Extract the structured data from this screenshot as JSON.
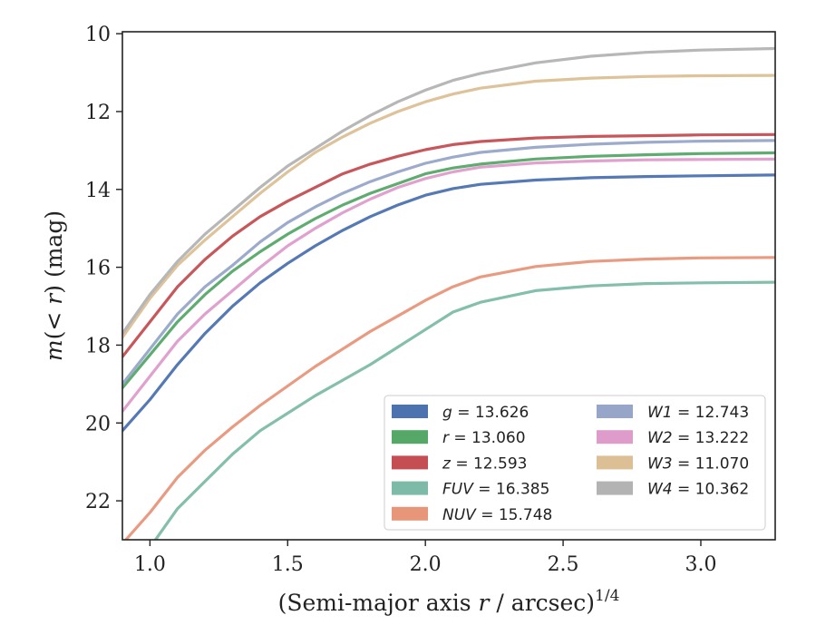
{
  "chart_data": {
    "type": "line",
    "xlabel": "(Semi-major axis r / arcsec)^1/4",
    "xlabel_main": "(Semi-major axis ",
    "xlabel_var": "r",
    "xlabel_rest": " / arcsec)",
    "xlabel_sup": "1/4",
    "ylabel": "m(< r) (mag)",
    "ylabel_var": "m",
    "ylabel_open": "(",
    "ylabel_lt": "< ",
    "ylabel_r": "r",
    "ylabel_close": ") (mag)",
    "xlim": [
      0.9,
      3.27
    ],
    "ylim": [
      23.0,
      9.95
    ],
    "y_inverted": true,
    "xticks": [
      1.0,
      1.5,
      2.0,
      2.5,
      3.0
    ],
    "xtick_labels": [
      "1.0",
      "1.5",
      "2.0",
      "2.5",
      "3.0"
    ],
    "yticks": [
      10,
      12,
      14,
      16,
      18,
      20,
      22
    ],
    "ytick_labels": [
      "10",
      "12",
      "14",
      "16",
      "18",
      "20",
      "22"
    ],
    "grid": false,
    "legend_position": "lower-right",
    "legend_columns": 2,
    "series": [
      {
        "key": "g",
        "name": "g = 13.626",
        "label_var": "g",
        "label_val": " = 13.626",
        "color": "#4c72b0",
        "asymptote": 13.626,
        "x": [
          0.9,
          1.0,
          1.1,
          1.2,
          1.3,
          1.4,
          1.5,
          1.6,
          1.7,
          1.8,
          1.9,
          2.0,
          2.1,
          2.2,
          2.4,
          2.6,
          2.8,
          3.0,
          3.27
        ],
        "y": [
          20.2,
          19.4,
          18.5,
          17.7,
          17.0,
          16.4,
          15.9,
          15.45,
          15.05,
          14.7,
          14.4,
          14.15,
          13.98,
          13.87,
          13.76,
          13.7,
          13.67,
          13.65,
          13.63
        ]
      },
      {
        "key": "r",
        "name": "r = 13.060",
        "label_var": "r",
        "label_val": " = 13.060",
        "color": "#55a868",
        "asymptote": 13.06,
        "x": [
          0.9,
          1.0,
          1.1,
          1.2,
          1.3,
          1.4,
          1.5,
          1.6,
          1.7,
          1.8,
          1.9,
          2.0,
          2.1,
          2.2,
          2.4,
          2.6,
          2.8,
          3.0,
          3.27
        ],
        "y": [
          19.1,
          18.25,
          17.4,
          16.7,
          16.1,
          15.6,
          15.15,
          14.75,
          14.4,
          14.1,
          13.85,
          13.6,
          13.45,
          13.35,
          13.22,
          13.15,
          13.11,
          13.08,
          13.06
        ]
      },
      {
        "key": "z",
        "name": "z = 12.593",
        "label_var": "z",
        "label_val": " = 12.593",
        "color": "#c44e52",
        "asymptote": 12.593,
        "x": [
          0.9,
          1.0,
          1.1,
          1.2,
          1.3,
          1.4,
          1.5,
          1.6,
          1.7,
          1.8,
          1.9,
          2.0,
          2.1,
          2.2,
          2.4,
          2.6,
          2.8,
          3.0,
          3.27
        ],
        "y": [
          18.3,
          17.4,
          16.5,
          15.8,
          15.2,
          14.7,
          14.3,
          13.95,
          13.6,
          13.35,
          13.15,
          12.98,
          12.85,
          12.77,
          12.68,
          12.64,
          12.62,
          12.6,
          12.59
        ]
      },
      {
        "key": "FUV",
        "name": "FUV = 16.385",
        "label_var": "FUV",
        "label_val": " = 16.385",
        "color": "#7dbba8",
        "asymptote": 16.385,
        "x": [
          0.9,
          1.0,
          1.1,
          1.2,
          1.3,
          1.4,
          1.5,
          1.6,
          1.7,
          1.8,
          1.9,
          2.0,
          2.1,
          2.2,
          2.4,
          2.6,
          2.8,
          3.0,
          3.27
        ],
        "y": [
          24.3,
          23.2,
          22.2,
          21.5,
          20.8,
          20.2,
          19.75,
          19.3,
          18.9,
          18.5,
          18.05,
          17.6,
          17.15,
          16.9,
          16.6,
          16.48,
          16.42,
          16.4,
          16.385
        ]
      },
      {
        "key": "NUV",
        "name": "NUV = 15.748",
        "label_var": "NUV",
        "label_val": " = 15.748",
        "color": "#e8967a",
        "asymptote": 15.748,
        "x": [
          0.9,
          1.0,
          1.1,
          1.2,
          1.3,
          1.4,
          1.5,
          1.6,
          1.7,
          1.8,
          1.9,
          2.0,
          2.1,
          2.2,
          2.4,
          2.6,
          2.8,
          3.0,
          3.27
        ],
        "y": [
          23.1,
          22.3,
          21.4,
          20.7,
          20.1,
          19.55,
          19.05,
          18.55,
          18.1,
          17.65,
          17.25,
          16.85,
          16.5,
          16.25,
          15.98,
          15.85,
          15.79,
          15.76,
          15.748
        ]
      },
      {
        "key": "W1",
        "name": "W1 = 12.743",
        "label_var": "W1",
        "label_val": " = 12.743",
        "color": "#97a6c8",
        "asymptote": 12.743,
        "x": [
          0.9,
          1.0,
          1.1,
          1.2,
          1.3,
          1.4,
          1.5,
          1.6,
          1.7,
          1.8,
          1.9,
          2.0,
          2.1,
          2.2,
          2.4,
          2.6,
          2.8,
          3.0,
          3.27
        ],
        "y": [
          19.0,
          18.1,
          17.2,
          16.5,
          15.95,
          15.35,
          14.85,
          14.45,
          14.1,
          13.8,
          13.55,
          13.33,
          13.17,
          13.05,
          12.92,
          12.84,
          12.79,
          12.76,
          12.743
        ]
      },
      {
        "key": "W2",
        "name": "W2 = 13.222",
        "label_var": "W2",
        "label_val": " = 13.222",
        "color": "#de9ccb",
        "asymptote": 13.222,
        "x": [
          0.9,
          1.0,
          1.1,
          1.2,
          1.3,
          1.4,
          1.5,
          1.6,
          1.7,
          1.8,
          1.9,
          2.0,
          2.1,
          2.2,
          2.4,
          2.6,
          2.8,
          3.0,
          3.27
        ],
        "y": [
          19.7,
          18.8,
          17.9,
          17.2,
          16.6,
          16.0,
          15.45,
          15.0,
          14.6,
          14.25,
          13.95,
          13.72,
          13.55,
          13.43,
          13.32,
          13.27,
          13.24,
          13.23,
          13.222
        ]
      },
      {
        "key": "W3",
        "name": "W3 = 11.070",
        "label_var": "W3",
        "label_val": " = 11.070",
        "color": "#dcbf95",
        "asymptote": 11.07,
        "x": [
          0.9,
          1.0,
          1.1,
          1.2,
          1.3,
          1.4,
          1.5,
          1.6,
          1.7,
          1.8,
          1.9,
          2.0,
          2.1,
          2.2,
          2.4,
          2.6,
          2.8,
          3.0,
          3.27
        ],
        "y": [
          17.8,
          16.8,
          15.95,
          15.3,
          14.7,
          14.1,
          13.55,
          13.05,
          12.65,
          12.3,
          12.0,
          11.75,
          11.55,
          11.4,
          11.22,
          11.14,
          11.1,
          11.08,
          11.07
        ]
      },
      {
        "key": "W4",
        "name": "W4 = 10.362",
        "label_var": "W4",
        "label_val": " = 10.362",
        "color": "#b3b3b3",
        "asymptote": 10.362,
        "x": [
          0.9,
          1.0,
          1.1,
          1.2,
          1.3,
          1.4,
          1.5,
          1.6,
          1.7,
          1.8,
          1.9,
          2.0,
          2.1,
          2.2,
          2.4,
          2.6,
          2.8,
          3.0,
          3.27
        ],
        "y": [
          17.7,
          16.7,
          15.85,
          15.15,
          14.55,
          13.95,
          13.4,
          12.95,
          12.5,
          12.1,
          11.75,
          11.45,
          11.2,
          11.02,
          10.75,
          10.58,
          10.48,
          10.42,
          10.38
        ]
      }
    ]
  }
}
